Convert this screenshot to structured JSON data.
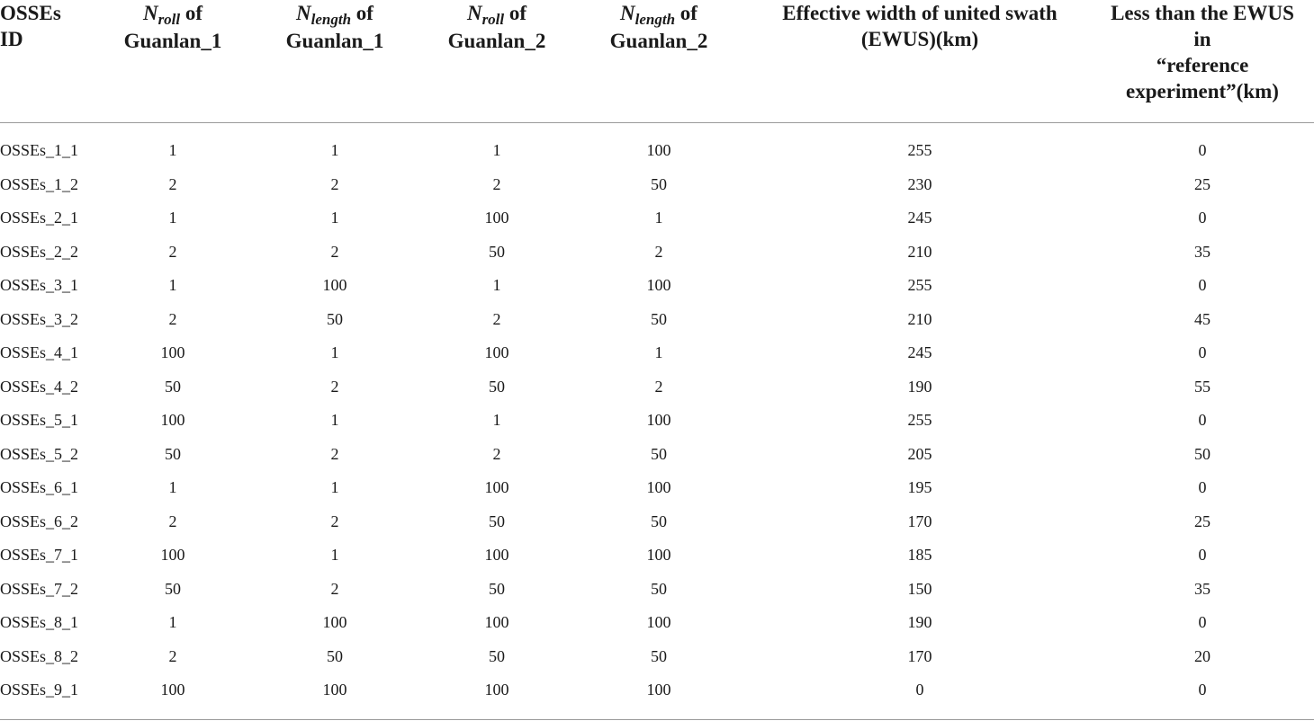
{
  "header": {
    "col0": [
      "OSSEs",
      "ID"
    ],
    "col1": {
      "var": "N",
      "sub": "roll",
      "suffix": " of",
      "line2": "Guanlan_1"
    },
    "col2": {
      "var": "N",
      "sub": "length",
      "suffix": " of",
      "line2": "Guanlan_1"
    },
    "col3": {
      "var": "N",
      "sub": "roll",
      "suffix": " of",
      "line2": "Guanlan_2"
    },
    "col4": {
      "var": "N",
      "sub": "length",
      "suffix": " of",
      "line2": "Guanlan_2"
    },
    "col5": [
      "Effective width of united swath",
      "(EWUS)(km)"
    ],
    "col6": [
      "Less than the EWUS",
      "in",
      "“reference",
      "experiment”(km)"
    ]
  },
  "rows": [
    [
      "OSSEs_1_1",
      "1",
      "1",
      "1",
      "100",
      "255",
      "0"
    ],
    [
      "OSSEs_1_2",
      "2",
      "2",
      "2",
      "50",
      "230",
      "25"
    ],
    [
      "OSSEs_2_1",
      "1",
      "1",
      "100",
      "1",
      "245",
      "0"
    ],
    [
      "OSSEs_2_2",
      "2",
      "2",
      "50",
      "2",
      "210",
      "35"
    ],
    [
      "OSSEs_3_1",
      "1",
      "100",
      "1",
      "100",
      "255",
      "0"
    ],
    [
      "OSSEs_3_2",
      "2",
      "50",
      "2",
      "50",
      "210",
      "45"
    ],
    [
      "OSSEs_4_1",
      "100",
      "1",
      "100",
      "1",
      "245",
      "0"
    ],
    [
      "OSSEs_4_2",
      "50",
      "2",
      "50",
      "2",
      "190",
      "55"
    ],
    [
      "OSSEs_5_1",
      "100",
      "1",
      "1",
      "100",
      "255",
      "0"
    ],
    [
      "OSSEs_5_2",
      "50",
      "2",
      "2",
      "50",
      "205",
      "50"
    ],
    [
      "OSSEs_6_1",
      "1",
      "1",
      "100",
      "100",
      "195",
      "0"
    ],
    [
      "OSSEs_6_2",
      "2",
      "2",
      "50",
      "50",
      "170",
      "25"
    ],
    [
      "OSSEs_7_1",
      "100",
      "1",
      "100",
      "100",
      "185",
      "0"
    ],
    [
      "OSSEs_7_2",
      "50",
      "2",
      "50",
      "50",
      "150",
      "35"
    ],
    [
      "OSSEs_8_1",
      "1",
      "100",
      "100",
      "100",
      "190",
      "0"
    ],
    [
      "OSSEs_8_2",
      "2",
      "50",
      "50",
      "50",
      "170",
      "20"
    ],
    [
      "OSSEs_9_1",
      "100",
      "100",
      "100",
      "100",
      "0",
      "0"
    ]
  ]
}
